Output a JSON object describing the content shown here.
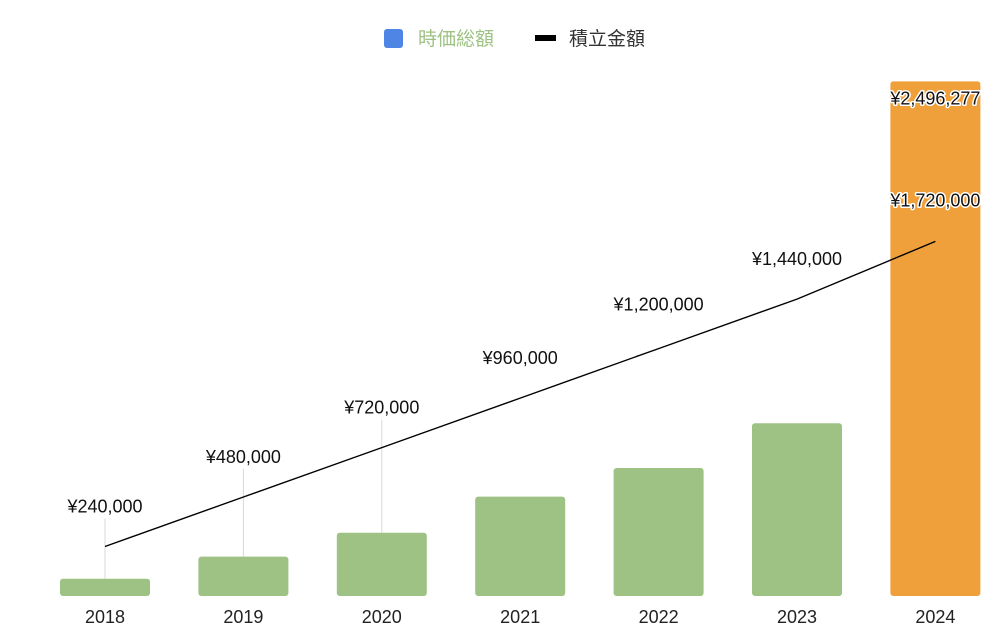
{
  "colors": {
    "bar": "#9dc283",
    "bar_highlight": "#f0a03a",
    "line": "#000000",
    "legend_marker_series1": "#4f86e6",
    "legend_text_series1": "#9dc283",
    "legend_text_series2": "#333333",
    "connector": "#d8d8d8"
  },
  "chart_data": {
    "type": "bar",
    "categories": [
      "2018",
      "2019",
      "2020",
      "2021",
      "2022",
      "2023",
      "2024"
    ],
    "series": [
      {
        "name": "時価総額",
        "type": "bar",
        "values": [
          84000,
          191000,
          307000,
          482000,
          621000,
          838000,
          2496277
        ],
        "highlight_index": 6
      },
      {
        "name": "積立金額",
        "type": "line",
        "values": [
          240000,
          480000,
          720000,
          960000,
          1200000,
          1440000,
          1720000
        ]
      }
    ],
    "data_labels": {
      "bars": [
        "",
        "",
        "",
        "",
        "",
        "",
        "¥2,496,277"
      ],
      "line": [
        "¥240,000",
        "¥480,000",
        "¥720,000",
        "¥960,000",
        "¥1,200,000",
        "¥1,440,000",
        "¥1,720,000"
      ]
    },
    "legend": {
      "position": "top"
    },
    "ylim": [
      0,
      2600000
    ],
    "grid": false
  }
}
